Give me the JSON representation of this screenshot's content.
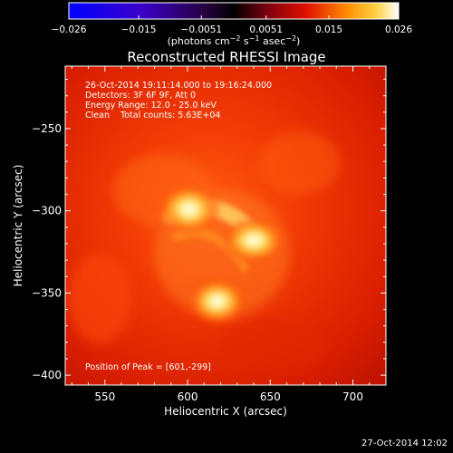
{
  "colorbar": {
    "ticks": [
      "-0.026",
      "-0.015",
      "-0.0051",
      "0.0051",
      "0.015",
      "0.026"
    ],
    "tick_values": [
      -0.026,
      -0.015,
      -0.0051,
      0.0051,
      0.015,
      0.026
    ],
    "range": [
      -0.026,
      0.026
    ],
    "units_prefix": "(photons cm",
    "units_exp1": "−2",
    "units_mid": " s",
    "units_exp2": "−1",
    "units_mid2": " asec",
    "units_exp3": "−2",
    "units_suffix": ")"
  },
  "chart_data": {
    "type": "heatmap",
    "title": "Reconstructed RHESSI Image",
    "xlabel": "Heliocentric X (arcsec)",
    "ylabel": "Heliocentric Y (arcsec)",
    "xlim": [
      526,
      720
    ],
    "ylim": [
      -406,
      -212
    ],
    "xticks": [
      550,
      600,
      650,
      700
    ],
    "yticks": [
      -250,
      -300,
      -350,
      -400
    ],
    "sources": [
      {
        "x": 601,
        "y": -299,
        "intensity": 1.0
      },
      {
        "x": 640,
        "y": -318,
        "intensity": 0.75
      },
      {
        "x": 618,
        "y": -355,
        "intensity": 0.8
      }
    ],
    "colors": {
      "low": "#0000ff",
      "mid": "#000000",
      "high": "#ffffff",
      "accent": "#ff2a00"
    }
  },
  "info": {
    "time": "26-Oct-2014 19:11:14.000 to 19:16:24.000",
    "detectors": "Detectors: 3F 6F 9F, Att 0",
    "energy": "Energy Range: 12.0 - 25.0 keV",
    "clean": "Clean    Total counts: 5.63E+04",
    "peak": "Position of Peak = [601,-299]"
  },
  "footer": {
    "timestamp": "27-Oct-2014 12:02"
  }
}
